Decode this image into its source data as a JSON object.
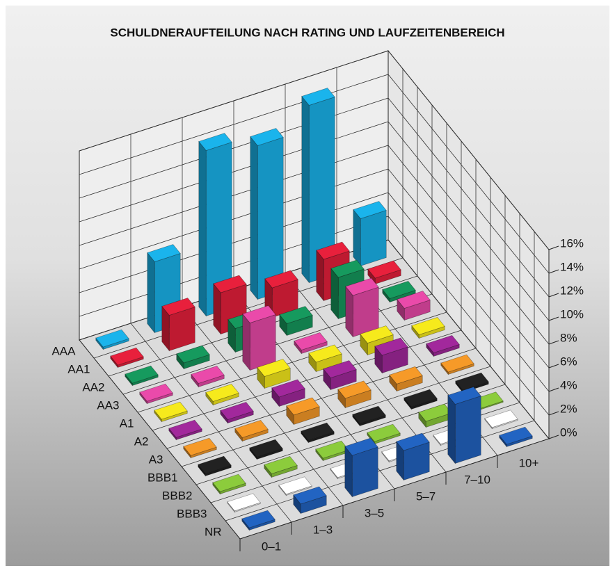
{
  "chart_data": {
    "type": "bar3d",
    "title": "SCHULDNERAUFTEILUNG NACH RATING UND LAUFZEITENBEREICH",
    "categories": [
      "0–1",
      "1–3",
      "3–5",
      "5–7",
      "7–10",
      "10+"
    ],
    "series": [
      {
        "name": "AAA",
        "color": "#1ab4ec",
        "values": [
          0.2,
          6,
          14,
          13,
          15,
          4
        ]
      },
      {
        "name": "AA1",
        "color": "#e8203c",
        "values": [
          0.2,
          3,
          3.5,
          2.5,
          3.5,
          0.5
        ]
      },
      {
        "name": "AA2",
        "color": "#169a5e",
        "values": [
          0.2,
          0.5,
          2,
          1,
          3.5,
          0.3
        ]
      },
      {
        "name": "AA3",
        "color": "#ea4aaa",
        "values": [
          0.2,
          0.3,
          4,
          0.3,
          3.5,
          1
        ]
      },
      {
        "name": "A1",
        "color": "#f6ea1c",
        "values": [
          0.2,
          0.3,
          1,
          0.8,
          1,
          0.3
        ]
      },
      {
        "name": "A2",
        "color": "#a2289c",
        "values": [
          0.2,
          0.3,
          0.8,
          1,
          1.5,
          0.3
        ]
      },
      {
        "name": "A3",
        "color": "#f69a28",
        "values": [
          0.2,
          0.3,
          0.8,
          0.8,
          0.6,
          0.2
        ]
      },
      {
        "name": "BBB1",
        "color": "#222222",
        "values": [
          0.2,
          0.2,
          0.2,
          0.2,
          0.2,
          0.2
        ]
      },
      {
        "name": "BBB2",
        "color": "#8ccc3c",
        "values": [
          0.2,
          0.3,
          0.2,
          0.2,
          0.5,
          0.1
        ]
      },
      {
        "name": "BBB3",
        "color": "#ffffff",
        "values": [
          0.1,
          0.1,
          0.1,
          0.1,
          0.1,
          0.1
        ]
      },
      {
        "name": "NR",
        "color": "#2264c2",
        "values": [
          0.2,
          0.8,
          3.5,
          2.5,
          5,
          0.2
        ]
      }
    ],
    "ylim": [
      0,
      16
    ],
    "yticks": [
      {
        "value": 0,
        "label": "0%"
      },
      {
        "value": 2,
        "label": "2%"
      },
      {
        "value": 4,
        "label": "4%"
      },
      {
        "value": 6,
        "label": "6%"
      },
      {
        "value": 8,
        "label": "8%"
      },
      {
        "value": 10,
        "label": "10%"
      },
      {
        "value": 12,
        "label": "12%"
      },
      {
        "value": 14,
        "label": "14%"
      },
      {
        "value": 16,
        "label": "16%"
      }
    ],
    "grid": true
  }
}
